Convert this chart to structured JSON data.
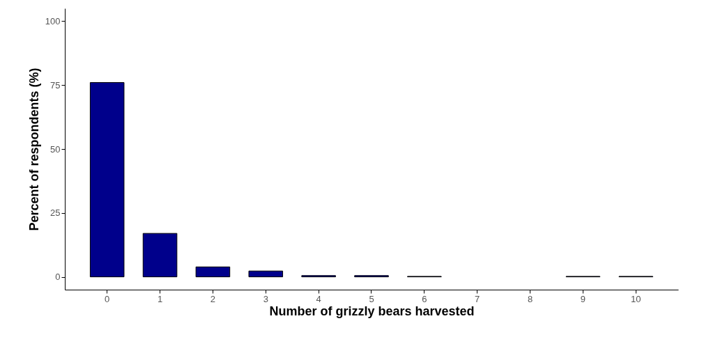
{
  "chart_data": {
    "type": "bar",
    "xlabel": "Number of grizzly bears harvested",
    "ylabel": "Percent of respondents (%)",
    "categories": [
      "0",
      "1",
      "2",
      "3",
      "4",
      "5",
      "6",
      "7",
      "8",
      "9",
      "10"
    ],
    "values": [
      76.0,
      17.0,
      3.9,
      2.3,
      0.5,
      0.5,
      0.2,
      0,
      0,
      0.2,
      0.2
    ],
    "color": "#00008b",
    "ylim": [
      -5,
      105
    ],
    "yticks": [
      0,
      25,
      50,
      75,
      100
    ],
    "grid": false
  }
}
